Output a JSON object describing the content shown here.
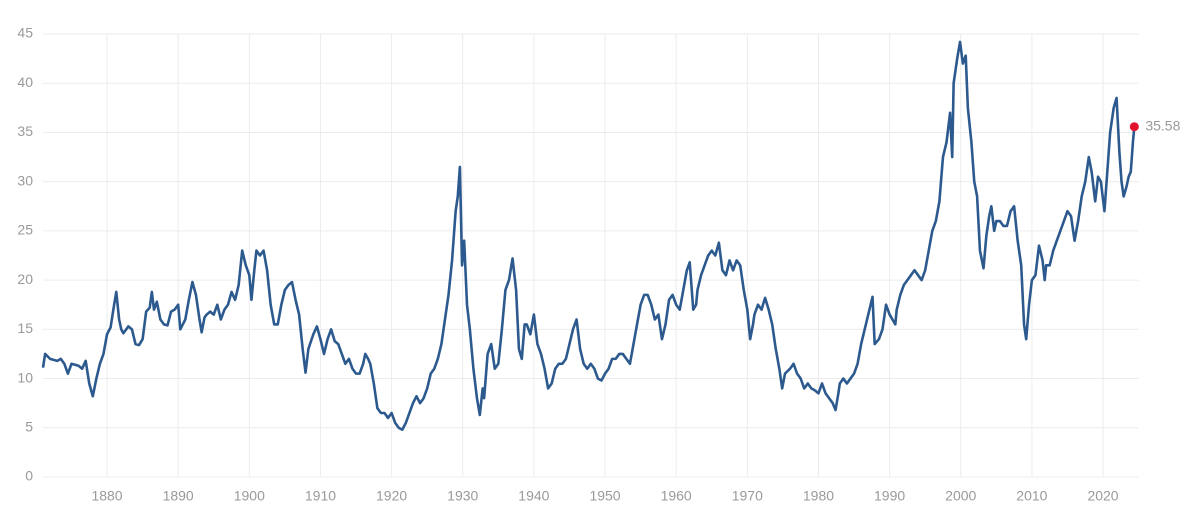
{
  "chart_data": {
    "type": "line",
    "color": "#2d5a8e",
    "highlight_color": "#e3122c",
    "grid": true,
    "xlim": [
      1871,
      2025
    ],
    "xticks": [
      1880,
      1890,
      1900,
      1910,
      1920,
      1930,
      1940,
      1950,
      1960,
      1970,
      1980,
      1990,
      2000,
      2010,
      2020
    ],
    "ylim": [
      0,
      45
    ],
    "yticks": [
      0,
      5,
      10,
      15,
      20,
      25,
      30,
      35,
      40,
      45
    ],
    "x": [
      1871.0,
      1871.3,
      1872,
      1873,
      1873.5,
      1874,
      1874.5,
      1875,
      1876,
      1876.5,
      1877,
      1877.5,
      1878,
      1878.5,
      1879,
      1879.5,
      1880,
      1880.5,
      1881,
      1881.3,
      1881.7,
      1882,
      1882.3,
      1883,
      1883.5,
      1884,
      1884.5,
      1885,
      1885.5,
      1886,
      1886.3,
      1886.6,
      1887,
      1887.5,
      1888,
      1888.5,
      1889,
      1889.5,
      1890,
      1890.3,
      1891,
      1891.5,
      1892,
      1892.5,
      1893,
      1893.3,
      1893.7,
      1894,
      1894.5,
      1895,
      1895.5,
      1896,
      1896.5,
      1897,
      1897.5,
      1898,
      1898.5,
      1899,
      1899.5,
      1900,
      1900.3,
      1900.7,
      1901,
      1901.5,
      1902,
      1902.5,
      1903,
      1903.5,
      1904,
      1904.5,
      1905,
      1905.5,
      1906,
      1906.5,
      1907,
      1907.5,
      1907.9,
      1908.3,
      1909,
      1909.5,
      1910,
      1910.5,
      1911,
      1911.5,
      1912,
      1912.5,
      1913,
      1913.5,
      1914,
      1914.5,
      1915,
      1915.5,
      1916,
      1916.3,
      1916.7,
      1917,
      1917.5,
      1918,
      1918.5,
      1919,
      1919.5,
      1920,
      1920.5,
      1921,
      1921.5,
      1922,
      1922.5,
      1923,
      1923.5,
      1924,
      1924.5,
      1925,
      1925.5,
      1926,
      1926.5,
      1927,
      1927.5,
      1928,
      1928.5,
      1929,
      1929.3,
      1929.6,
      1929.9,
      1930.2,
      1930.6,
      1931,
      1931.5,
      1932,
      1932.4,
      1932.8,
      1933,
      1933.5,
      1934,
      1934.5,
      1935,
      1935.5,
      1936,
      1936.5,
      1937,
      1937.5,
      1937.9,
      1938.3,
      1938.7,
      1939,
      1939.5,
      1940,
      1940.5,
      1941,
      1941.5,
      1942,
      1942.5,
      1943,
      1943.5,
      1944,
      1944.5,
      1945,
      1945.5,
      1946,
      1946.5,
      1947,
      1947.5,
      1948,
      1948.5,
      1949,
      1949.5,
      1950,
      1950.5,
      1951,
      1951.5,
      1952,
      1952.5,
      1953,
      1953.5,
      1954,
      1954.5,
      1955,
      1955.5,
      1956,
      1956.5,
      1957,
      1957.5,
      1958,
      1958.5,
      1959,
      1959.5,
      1960,
      1960.5,
      1961,
      1961.5,
      1961.9,
      1962.4,
      1962.8,
      1963,
      1963.5,
      1964,
      1964.5,
      1965,
      1965.5,
      1966,
      1966.5,
      1967,
      1967.5,
      1968,
      1968.5,
      1969,
      1969.5,
      1970,
      1970.4,
      1970.8,
      1971,
      1971.5,
      1972,
      1972.5,
      1973,
      1973.5,
      1974,
      1974.5,
      1974.9,
      1975.3,
      1976,
      1976.5,
      1977,
      1977.5,
      1978,
      1978.5,
      1979,
      1979.5,
      1980,
      1980.5,
      1981,
      1981.5,
      1982,
      1982.4,
      1982.8,
      1983,
      1983.5,
      1984,
      1984.5,
      1985,
      1985.5,
      1986,
      1986.5,
      1987,
      1987.6,
      1987.9,
      1988.5,
      1989,
      1989.5,
      1990,
      1990.8,
      1991,
      1991.5,
      1992,
      1992.5,
      1993,
      1993.5,
      1994,
      1994.5,
      1995,
      1995.5,
      1996,
      1996.5,
      1997,
      1997.5,
      1998,
      1998.5,
      1998.8,
      1999,
      1999.5,
      1999.9,
      2000.3,
      2000.7,
      2001,
      2001.5,
      2001.9,
      2002.3,
      2002.7,
      2003.2,
      2003.6,
      2004,
      2004.3,
      2004.7,
      2005,
      2005.5,
      2006,
      2006.5,
      2007,
      2007.5,
      2008,
      2008.5,
      2008.9,
      2009.2,
      2009.6,
      2010,
      2010.5,
      2011,
      2011.5,
      2011.8,
      2012,
      2012.5,
      2013,
      2013.5,
      2014,
      2014.5,
      2015,
      2015.5,
      2016,
      2016.5,
      2017,
      2017.5,
      2018,
      2018.4,
      2018.9,
      2019.3,
      2019.7,
      2020.2,
      2020.6,
      2021,
      2021.5,
      2021.9,
      2022.3,
      2022.6,
      2022.9,
      2023.3,
      2023.6,
      2023.9,
      2024.2,
      2024.4
    ],
    "values": [
      11.1,
      12.5,
      12.0,
      11.8,
      12.0,
      11.5,
      10.5,
      11.5,
      11.3,
      11.0,
      11.8,
      9.5,
      8.2,
      10,
      11.5,
      12.5,
      14.5,
      15.2,
      17.5,
      18.8,
      16,
      15,
      14.6,
      15.3,
      15.0,
      13.5,
      13.4,
      14,
      16.8,
      17.2,
      18.8,
      17.0,
      17.8,
      16.0,
      15.5,
      15.4,
      16.8,
      17.0,
      17.5,
      15.0,
      16.0,
      18.0,
      19.8,
      18.5,
      16,
      14.7,
      16.2,
      16.5,
      16.8,
      16.5,
      17.5,
      16,
      17.0,
      17.5,
      18.8,
      18.0,
      19.5,
      23.0,
      21.5,
      20.5,
      18.0,
      21.0,
      23.0,
      22.5,
      23.0,
      21.0,
      17.5,
      15.5,
      15.5,
      17.5,
      19.0,
      19.5,
      19.8,
      18.0,
      16.5,
      13.0,
      10.6,
      13.0,
      14.5,
      15.3,
      14.0,
      12.5,
      14.0,
      15.0,
      13.8,
      13.5,
      12.5,
      11.5,
      12.0,
      11.0,
      10.5,
      10.5,
      11.5,
      12.5,
      12.0,
      11.5,
      9.5,
      7.0,
      6.5,
      6.5,
      6.0,
      6.5,
      5.5,
      5.0,
      4.8,
      5.5,
      6.5,
      7.5,
      8.2,
      7.5,
      8.0,
      9.0,
      10.5,
      11.0,
      12.0,
      13.5,
      16.0,
      18.5,
      22.0,
      27.0,
      28.5,
      31.5,
      21.5,
      24.0,
      17.5,
      15.0,
      11.0,
      8.0,
      6.3,
      9.0,
      8.0,
      12.5,
      13.5,
      11.0,
      11.5,
      15.0,
      19.0,
      20.0,
      22.2,
      19.0,
      13.0,
      12.0,
      15.5,
      15.5,
      14.5,
      16.5,
      13.5,
      12.5,
      11.0,
      9.0,
      9.5,
      11.0,
      11.5,
      11.5,
      12.0,
      13.5,
      15.0,
      16.0,
      13.0,
      11.5,
      11.0,
      11.5,
      11.0,
      10.0,
      9.8,
      10.5,
      11.0,
      12.0,
      12.0,
      12.5,
      12.5,
      12.0,
      11.5,
      13.5,
      15.5,
      17.5,
      18.5,
      18.5,
      17.5,
      16.0,
      16.5,
      14.0,
      15.5,
      18.0,
      18.5,
      17.5,
      17.0,
      19.0,
      21.0,
      21.8,
      17.0,
      17.5,
      19.0,
      20.5,
      21.5,
      22.5,
      23.0,
      22.5,
      23.8,
      21.0,
      20.5,
      22.0,
      21.0,
      22.0,
      21.5,
      19.0,
      17.0,
      14.0,
      15.5,
      16.5,
      17.5,
      17.0,
      18.2,
      17.0,
      15.5,
      13.0,
      11.0,
      9.0,
      10.5,
      11.0,
      11.5,
      10.5,
      10.0,
      9.0,
      9.5,
      9.0,
      8.8,
      8.5,
      9.5,
      8.5,
      8.0,
      7.5,
      6.8,
      8.5,
      9.5,
      10.0,
      9.5,
      10.0,
      10.5,
      11.5,
      13.5,
      15.0,
      16.5,
      18.3,
      13.5,
      14.0,
      15.0,
      17.5,
      16.5,
      15.5,
      17.0,
      18.5,
      19.5,
      20.0,
      20.5,
      21.0,
      20.5,
      20.0,
      21.0,
      23.0,
      25.0,
      26.0,
      28.0,
      32.5,
      34.0,
      37.0,
      32.5,
      40.0,
      42.5,
      44.2,
      42.0,
      42.8,
      37.5,
      34.0,
      30.0,
      28.5,
      23.0,
      21.2,
      24.5,
      26.5,
      27.5,
      25.0,
      26.0,
      26.0,
      25.5,
      25.5,
      27.0,
      27.5,
      24.0,
      21.5,
      15.5,
      14.0,
      17.5,
      20.0,
      20.5,
      23.5,
      22.0,
      20.0,
      21.5,
      21.5,
      23.0,
      24.0,
      25.0,
      26.0,
      27.0,
      26.5,
      24.0,
      26.0,
      28.5,
      30.0,
      32.5,
      31.0,
      28.0,
      30.5,
      30.0,
      27.0,
      31.0,
      35.0,
      37.5,
      38.5,
      33.0,
      30.0,
      28.5,
      29.5,
      30.5,
      31.0,
      34.0,
      35.58
    ]
  }
}
